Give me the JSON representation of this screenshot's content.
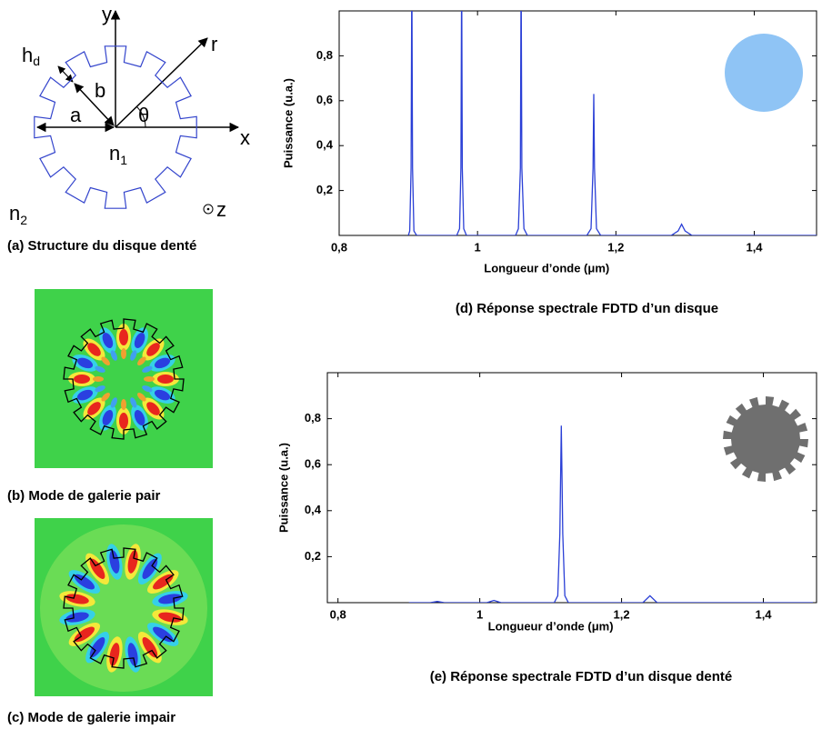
{
  "panel_a": {
    "caption": "(a) Structure du disque denté",
    "labels": {
      "y": "y",
      "r": "r",
      "h": "h",
      "h_sub": "d",
      "b": "b",
      "a": "a",
      "theta": "θ",
      "x": "x",
      "n1": "n",
      "n1_sub": "1",
      "n2": "n",
      "n2_sub": "2",
      "z": "z"
    }
  },
  "panel_b": {
    "caption": "(b) Mode de galerie pair"
  },
  "panel_c": {
    "caption": "(c) Mode de galerie impair"
  },
  "chart_data": [
    {
      "type": "line",
      "caption": "(d) Réponse spectrale FDTD d’un disque",
      "xlabel": "Longueur d’onde (μm)",
      "ylabel": "Puissance (u.a.)",
      "x": [
        0.9,
        0.902,
        0.904,
        0.905,
        0.906,
        0.908,
        0.912,
        0.97,
        0.974,
        0.976,
        0.977,
        0.978,
        0.98,
        0.984,
        1.055,
        1.059,
        1.062,
        1.063,
        1.064,
        1.067,
        1.072,
        1.158,
        1.164,
        1.167,
        1.168,
        1.169,
        1.172,
        1.178,
        1.28,
        1.29,
        1.295,
        1.3,
        1.31,
        1.49
      ],
      "color": "#2a3fd6",
      "values": [
        0.0,
        0.02,
        0.3,
        1.2,
        0.3,
        0.02,
        0.0,
        0.0,
        0.03,
        0.3,
        1.2,
        0.3,
        0.03,
        0.0,
        0.0,
        0.03,
        0.3,
        1.2,
        0.3,
        0.03,
        0.0,
        0.0,
        0.03,
        0.3,
        0.63,
        0.3,
        0.03,
        0.0,
        0.0,
        0.02,
        0.05,
        0.02,
        0.0,
        0.0
      ],
      "xlim": [
        0.8,
        1.49
      ],
      "ylim": [
        0,
        1
      ],
      "xticks": [
        {
          "value": 0.8,
          "label": "0,8"
        },
        1,
        {
          "value": 1.2,
          "label": "1,2"
        },
        {
          "value": 1.4,
          "label": "1,4"
        }
      ],
      "yticks": [
        {
          "value": 0.2,
          "label": "0,2"
        },
        {
          "value": 0.4,
          "label": "0,4"
        },
        {
          "value": 0.6,
          "label": "0,6"
        },
        {
          "value": 0.8,
          "label": "0,8"
        }
      ],
      "inset": {
        "shape": "disk",
        "color": "#8fc4f5"
      }
    },
    {
      "type": "line",
      "caption": "(e) Réponse spectrale FDTD d’un disque denté",
      "xlabel": "Longueur d’onde (μm)",
      "ylabel": "Puissance (u.a.)",
      "x": [
        0.9,
        0.93,
        0.94,
        0.95,
        1.01,
        1.02,
        1.03,
        1.105,
        1.11,
        1.113,
        1.115,
        1.117,
        1.12,
        1.125,
        1.23,
        1.24,
        1.25,
        1.47
      ],
      "color": "#2a3fd6",
      "values": [
        0.0,
        0.0,
        0.005,
        0.0,
        0.0,
        0.01,
        0.0,
        0.0,
        0.03,
        0.3,
        0.77,
        0.3,
        0.03,
        0.0,
        0.0,
        0.03,
        0.0,
        0.0
      ],
      "xlim": [
        0.785,
        1.475
      ],
      "ylim": [
        0,
        1
      ],
      "xticks": [
        {
          "value": 0.8,
          "label": "0,8"
        },
        1,
        {
          "value": 1.2,
          "label": "1,2"
        },
        {
          "value": 1.4,
          "label": "1,4"
        }
      ],
      "yticks": [
        {
          "value": 0.2,
          "label": "0,2"
        },
        {
          "value": 0.4,
          "label": "0,4"
        },
        {
          "value": 0.6,
          "label": "0,6"
        },
        {
          "value": 0.8,
          "label": "0,8"
        }
      ],
      "inset": {
        "shape": "toothed-disk",
        "color": "#6f6f6f"
      }
    }
  ]
}
